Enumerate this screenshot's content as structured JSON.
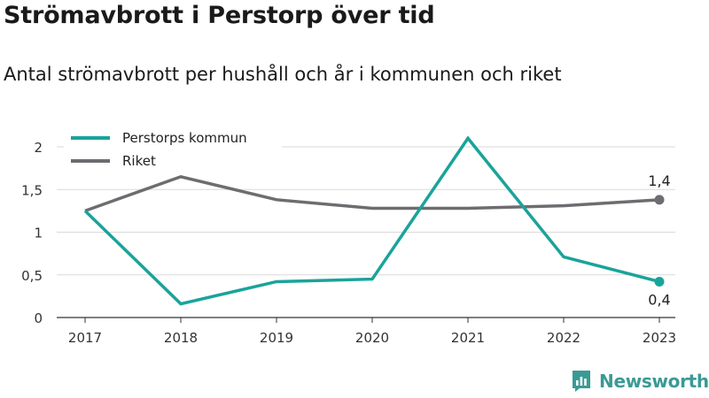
{
  "chart_data": {
    "type": "line",
    "title": "Strömavbrott i Perstorp över tid",
    "subtitle": "Antal strömavbrott per hushåll och år i kommunen och riket",
    "x": [
      "2017",
      "2018",
      "2019",
      "2020",
      "2021",
      "2022",
      "2023"
    ],
    "ylim": [
      0,
      2
    ],
    "yticks": [
      0,
      0.5,
      1,
      1.5,
      2
    ],
    "ytick_labels": [
      "0",
      "0,5",
      "1",
      "1,5",
      "2"
    ],
    "grid": true,
    "legend_position": "top-left",
    "series": [
      {
        "name": "Perstorps kommun",
        "color": "#1aa39a",
        "values": [
          1.25,
          0.16,
          0.42,
          0.45,
          2.1,
          0.71,
          0.42
        ],
        "end_label": "0,4"
      },
      {
        "name": "Riket",
        "color": "#6e6c70",
        "values": [
          1.25,
          1.65,
          1.38,
          1.28,
          1.28,
          1.31,
          1.38
        ],
        "end_label": "1,4"
      }
    ]
  },
  "brand": {
    "name": "Newsworthy",
    "color": "#3a9a95"
  }
}
